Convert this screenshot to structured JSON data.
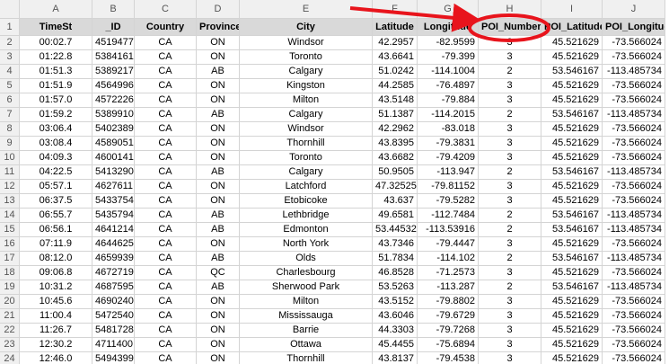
{
  "sheet": {
    "columns": [
      "A",
      "B",
      "C",
      "D",
      "E",
      "F",
      "G",
      "H",
      "I",
      "J"
    ],
    "header": {
      "number": "1",
      "cells": [
        "TimeSt",
        "_ID",
        "Country",
        "Province",
        "City",
        "Latitude",
        "Longitude",
        "POI_Number",
        "POI_Latitude",
        "POI_Longitude"
      ]
    },
    "rows": [
      {
        "number": "2",
        "cells": [
          "00:02.7",
          "4519477",
          "CA",
          "ON",
          "Windsor",
          "42.2957",
          "-82.9599",
          "3",
          "45.521629",
          "-73.566024"
        ]
      },
      {
        "number": "3",
        "cells": [
          "01:22.8",
          "5384161",
          "CA",
          "ON",
          "Toronto",
          "43.6641",
          "-79.399",
          "3",
          "45.521629",
          "-73.566024"
        ]
      },
      {
        "number": "4",
        "cells": [
          "01:51.3",
          "5389217",
          "CA",
          "AB",
          "Calgary",
          "51.0242",
          "-114.1004",
          "2",
          "53.546167",
          "-113.485734"
        ]
      },
      {
        "number": "5",
        "cells": [
          "01:51.9",
          "4564996",
          "CA",
          "ON",
          "Kingston",
          "44.2585",
          "-76.4897",
          "3",
          "45.521629",
          "-73.566024"
        ]
      },
      {
        "number": "6",
        "cells": [
          "01:57.0",
          "4572226",
          "CA",
          "ON",
          "Milton",
          "43.5148",
          "-79.884",
          "3",
          "45.521629",
          "-73.566024"
        ]
      },
      {
        "number": "7",
        "cells": [
          "01:59.2",
          "5389910",
          "CA",
          "AB",
          "Calgary",
          "51.1387",
          "-114.2015",
          "2",
          "53.546167",
          "-113.485734"
        ]
      },
      {
        "number": "8",
        "cells": [
          "03:06.4",
          "5402389",
          "CA",
          "ON",
          "Windsor",
          "42.2962",
          "-83.018",
          "3",
          "45.521629",
          "-73.566024"
        ]
      },
      {
        "number": "9",
        "cells": [
          "03:08.4",
          "4589051",
          "CA",
          "ON",
          "Thornhill",
          "43.8395",
          "-79.3831",
          "3",
          "45.521629",
          "-73.566024"
        ]
      },
      {
        "number": "10",
        "cells": [
          "04:09.3",
          "4600141",
          "CA",
          "ON",
          "Toronto",
          "43.6682",
          "-79.4209",
          "3",
          "45.521629",
          "-73.566024"
        ]
      },
      {
        "number": "11",
        "cells": [
          "04:22.5",
          "5413290",
          "CA",
          "AB",
          "Calgary",
          "50.9505",
          "-113.947",
          "2",
          "53.546167",
          "-113.485734"
        ]
      },
      {
        "number": "12",
        "cells": [
          "05:57.1",
          "4627611",
          "CA",
          "ON",
          "Latchford",
          "47.32525",
          "-79.81152",
          "3",
          "45.521629",
          "-73.566024"
        ]
      },
      {
        "number": "13",
        "cells": [
          "06:37.5",
          "5433754",
          "CA",
          "ON",
          "Etobicoke",
          "43.637",
          "-79.5282",
          "3",
          "45.521629",
          "-73.566024"
        ]
      },
      {
        "number": "14",
        "cells": [
          "06:55.7",
          "5435794",
          "CA",
          "AB",
          "Lethbridge",
          "49.6581",
          "-112.7484",
          "2",
          "53.546167",
          "-113.485734"
        ]
      },
      {
        "number": "15",
        "cells": [
          "06:56.1",
          "4641214",
          "CA",
          "AB",
          "Edmonton",
          "53.44532",
          "-113.53916",
          "2",
          "53.546167",
          "-113.485734"
        ]
      },
      {
        "number": "16",
        "cells": [
          "07:11.9",
          "4644625",
          "CA",
          "ON",
          "North York",
          "43.7346",
          "-79.4447",
          "3",
          "45.521629",
          "-73.566024"
        ]
      },
      {
        "number": "17",
        "cells": [
          "08:12.0",
          "4659939",
          "CA",
          "AB",
          "Olds",
          "51.7834",
          "-114.102",
          "2",
          "53.546167",
          "-113.485734"
        ]
      },
      {
        "number": "18",
        "cells": [
          "09:06.8",
          "4672719",
          "CA",
          "QC",
          "Charlesbourg",
          "46.8528",
          "-71.2573",
          "3",
          "45.521629",
          "-73.566024"
        ]
      },
      {
        "number": "19",
        "cells": [
          "10:31.2",
          "4687595",
          "CA",
          "AB",
          "Sherwood Park",
          "53.5263",
          "-113.287",
          "2",
          "53.546167",
          "-113.485734"
        ]
      },
      {
        "number": "20",
        "cells": [
          "10:45.6",
          "4690240",
          "CA",
          "ON",
          "Milton",
          "43.5152",
          "-79.8802",
          "3",
          "45.521629",
          "-73.566024"
        ]
      },
      {
        "number": "21",
        "cells": [
          "11:00.4",
          "5472540",
          "CA",
          "ON",
          "Mississauga",
          "43.6046",
          "-79.6729",
          "3",
          "45.521629",
          "-73.566024"
        ]
      },
      {
        "number": "22",
        "cells": [
          "11:26.7",
          "5481728",
          "CA",
          "ON",
          "Barrie",
          "44.3303",
          "-79.7268",
          "3",
          "45.521629",
          "-73.566024"
        ]
      },
      {
        "number": "23",
        "cells": [
          "12:30.2",
          "4711400",
          "CA",
          "ON",
          "Ottawa",
          "45.4455",
          "-75.6894",
          "3",
          "45.521629",
          "-73.566024"
        ]
      },
      {
        "number": "24",
        "cells": [
          "12:46.0",
          "5494399",
          "CA",
          "ON",
          "Thornhill",
          "43.8137",
          "-79.4538",
          "3",
          "45.521629",
          "-73.566024"
        ]
      }
    ]
  }
}
